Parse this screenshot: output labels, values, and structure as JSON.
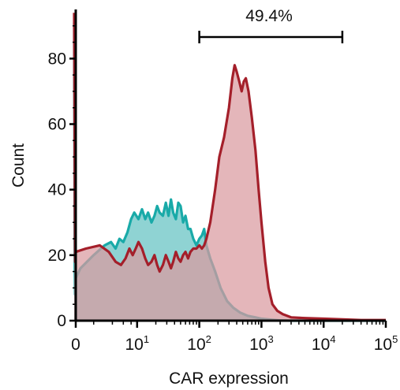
{
  "chart_data": {
    "type": "area",
    "xlabel": "CAR expression",
    "ylabel": "Count",
    "x_scale": "biexponential",
    "ylim": [
      0,
      95
    ],
    "xlim": [
      -10,
      100000
    ],
    "y_ticks": [
      {
        "value": 0,
        "label": "0"
      },
      {
        "value": 20,
        "label": "20"
      },
      {
        "value": 40,
        "label": "40"
      },
      {
        "value": 60,
        "label": "60"
      },
      {
        "value": 80,
        "label": "80"
      }
    ],
    "x_ticks": [
      {
        "value": 0,
        "label": "0"
      },
      {
        "value": 10,
        "base": "10",
        "exp": "1"
      },
      {
        "value": 100,
        "base": "10",
        "exp": "2"
      },
      {
        "value": 1000,
        "base": "10",
        "exp": "3"
      },
      {
        "value": 10000,
        "base": "10",
        "exp": "4"
      },
      {
        "value": 100000,
        "base": "10",
        "exp": "5"
      }
    ],
    "gate": {
      "label": "49.4%",
      "x_start": 100,
      "x_end": 20000
    },
    "series": [
      {
        "color": "#19aaa8",
        "fill": "#8fd3d3",
        "points": [
          [
            -10,
            91
          ],
          [
            -8,
            50
          ],
          [
            -6,
            16
          ],
          [
            -4,
            8
          ],
          [
            -1,
            11
          ],
          [
            0,
            13
          ],
          [
            1,
            16
          ],
          [
            2,
            20
          ],
          [
            3,
            23
          ],
          [
            3.8,
            24
          ],
          [
            4.5,
            22
          ],
          [
            5.2,
            25
          ],
          [
            6,
            24
          ],
          [
            7,
            27
          ],
          [
            8,
            31
          ],
          [
            9,
            33
          ],
          [
            10.5,
            31
          ],
          [
            12,
            34
          ],
          [
            13.5,
            31
          ],
          [
            15,
            33
          ],
          [
            17,
            30
          ],
          [
            19,
            32
          ],
          [
            21,
            35
          ],
          [
            23,
            33
          ],
          [
            26,
            32
          ],
          [
            29,
            36
          ],
          [
            32,
            32
          ],
          [
            35,
            37
          ],
          [
            38,
            33
          ],
          [
            42,
            31
          ],
          [
            46,
            36
          ],
          [
            50,
            35
          ],
          [
            55,
            30
          ],
          [
            60,
            32
          ],
          [
            66,
            28
          ],
          [
            72,
            28
          ],
          [
            80,
            25
          ],
          [
            90,
            23
          ],
          [
            100,
            25
          ],
          [
            110,
            26
          ],
          [
            120,
            28
          ],
          [
            130,
            23
          ],
          [
            150,
            19
          ],
          [
            180,
            15
          ],
          [
            220,
            10
          ],
          [
            280,
            6
          ],
          [
            350,
            4
          ],
          [
            450,
            2.5
          ],
          [
            600,
            1.5
          ],
          [
            800,
            1
          ],
          [
            1000,
            0.6
          ],
          [
            1500,
            0.3
          ],
          [
            2000,
            0.1
          ],
          [
            3000,
            0
          ],
          [
            100000,
            0
          ]
        ]
      },
      {
        "color": "#a41f2a",
        "fill": "#d99aa0",
        "points": [
          [
            -10,
            94
          ],
          [
            -8,
            70
          ],
          [
            -6,
            40
          ],
          [
            -4,
            18
          ],
          [
            -2.5,
            19
          ],
          [
            -1,
            20
          ],
          [
            0,
            21
          ],
          [
            1.5,
            22
          ],
          [
            2.5,
            23
          ],
          [
            3.5,
            21
          ],
          [
            4.5,
            18
          ],
          [
            5.5,
            17
          ],
          [
            6.5,
            19
          ],
          [
            7.5,
            22
          ],
          [
            8.5,
            20
          ],
          [
            9.5,
            22
          ],
          [
            10.5,
            24
          ],
          [
            12,
            22
          ],
          [
            13.5,
            19
          ],
          [
            15,
            17
          ],
          [
            17,
            18
          ],
          [
            19,
            20
          ],
          [
            21,
            17
          ],
          [
            23,
            15
          ],
          [
            26,
            17
          ],
          [
            29,
            20
          ],
          [
            32,
            18
          ],
          [
            35,
            16
          ],
          [
            38,
            18
          ],
          [
            42,
            21
          ],
          [
            46,
            19
          ],
          [
            50,
            18
          ],
          [
            55,
            20
          ],
          [
            60,
            21
          ],
          [
            66,
            19
          ],
          [
            72,
            21
          ],
          [
            80,
            22
          ],
          [
            90,
            22
          ],
          [
            100,
            23
          ],
          [
            110,
            22
          ],
          [
            120,
            23
          ],
          [
            130,
            25
          ],
          [
            150,
            30
          ],
          [
            180,
            40
          ],
          [
            210,
            50
          ],
          [
            250,
            56
          ],
          [
            300,
            65
          ],
          [
            340,
            74
          ],
          [
            370,
            78
          ],
          [
            400,
            76
          ],
          [
            440,
            73
          ],
          [
            480,
            70
          ],
          [
            520,
            73
          ],
          [
            560,
            74
          ],
          [
            620,
            70
          ],
          [
            700,
            62
          ],
          [
            800,
            52
          ],
          [
            900,
            40
          ],
          [
            1000,
            30
          ],
          [
            1150,
            18
          ],
          [
            1300,
            10
          ],
          [
            1500,
            5
          ],
          [
            1800,
            3
          ],
          [
            2200,
            2
          ],
          [
            3000,
            1
          ],
          [
            5000,
            0.8
          ],
          [
            10000,
            0.6
          ],
          [
            20000,
            0.4
          ],
          [
            40000,
            0.2
          ],
          [
            100000,
            0.2
          ]
        ]
      }
    ]
  }
}
